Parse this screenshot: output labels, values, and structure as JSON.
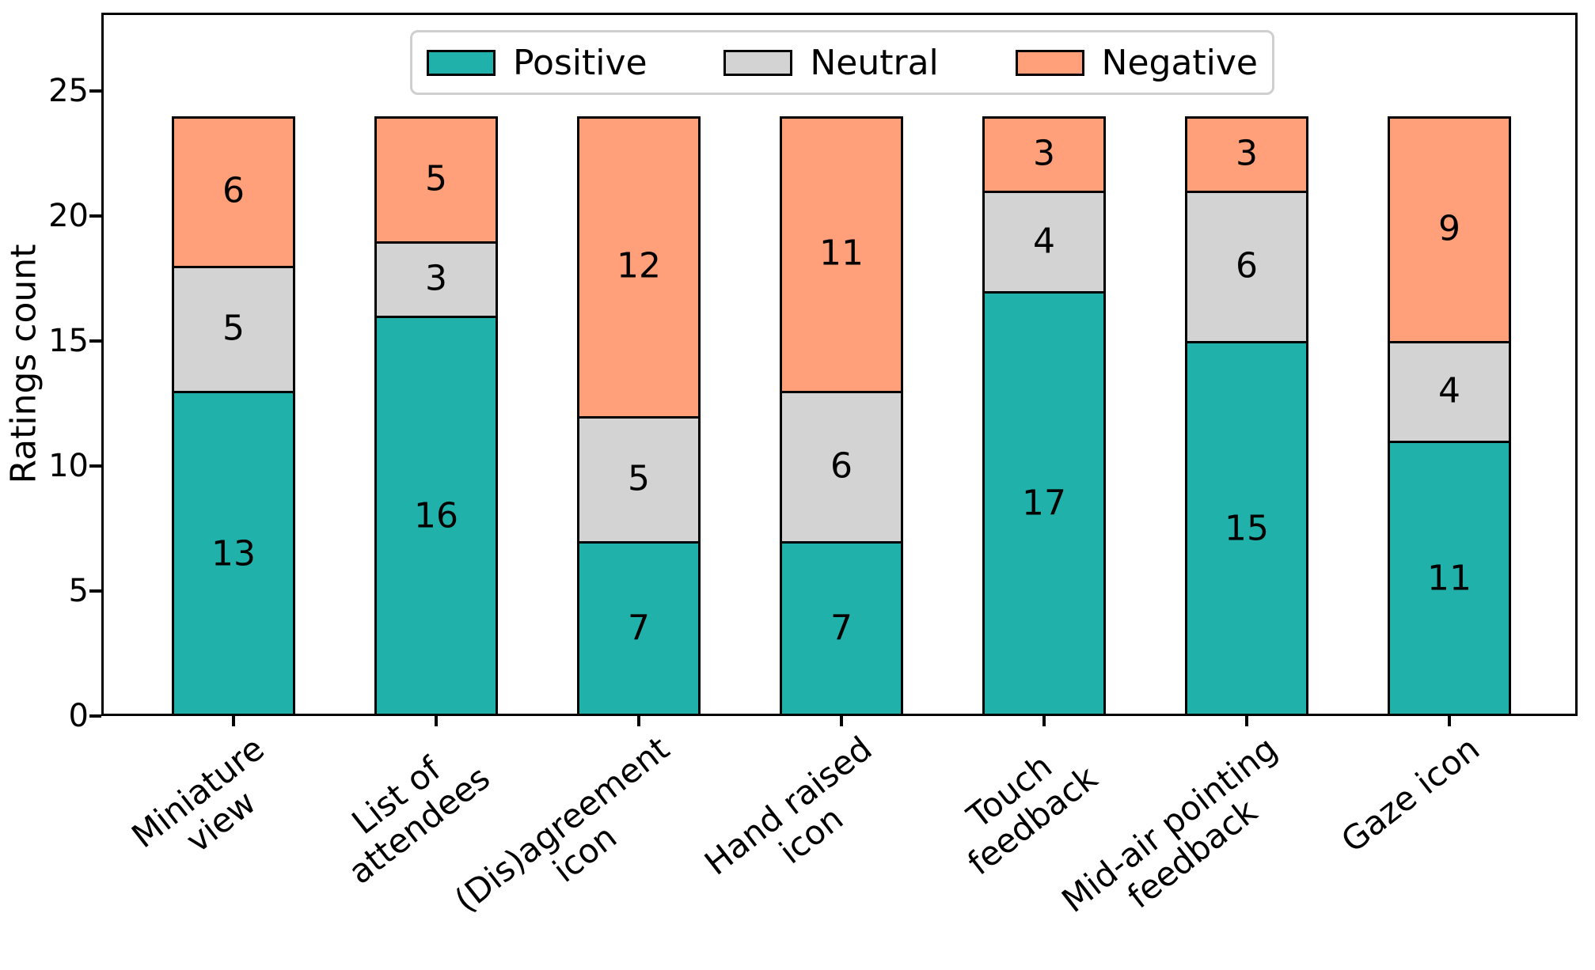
{
  "chart_data": {
    "type": "bar",
    "stacked": true,
    "title": "",
    "xlabel": "",
    "ylabel": "Ratings count",
    "ylim": [
      0,
      28.1
    ],
    "yticks": [
      0,
      5,
      10,
      15,
      20,
      25
    ],
    "grid": false,
    "legend_position": "upper center",
    "bar_total": 24,
    "categories": [
      {
        "label": "Miniature view",
        "lines": [
          "Miniature",
          "view"
        ]
      },
      {
        "label": "List of attendees",
        "lines": [
          "List of",
          "attendees"
        ]
      },
      {
        "label": "(Dis)agreement icon",
        "lines": [
          "(Dis)agreement",
          "icon"
        ]
      },
      {
        "label": "Hand raised icon",
        "lines": [
          "Hand raised",
          "icon"
        ]
      },
      {
        "label": "Touch feedback",
        "lines": [
          "Touch",
          "feedback"
        ]
      },
      {
        "label": "Mid-air pointing feedback",
        "lines": [
          "Mid-air pointing",
          "feedback"
        ]
      },
      {
        "label": "Gaze icon",
        "lines": [
          "Gaze icon"
        ]
      }
    ],
    "series": [
      {
        "name": "Positive",
        "color": "#20B2AA",
        "values": [
          13,
          16,
          7,
          7,
          17,
          15,
          11
        ]
      },
      {
        "name": "Neutral",
        "color": "#D3D3D3",
        "values": [
          5,
          3,
          5,
          6,
          4,
          6,
          4
        ]
      },
      {
        "name": "Negative",
        "color": "#FFA07A",
        "values": [
          6,
          5,
          12,
          11,
          3,
          3,
          9
        ]
      }
    ],
    "edge_color": "#000000"
  }
}
